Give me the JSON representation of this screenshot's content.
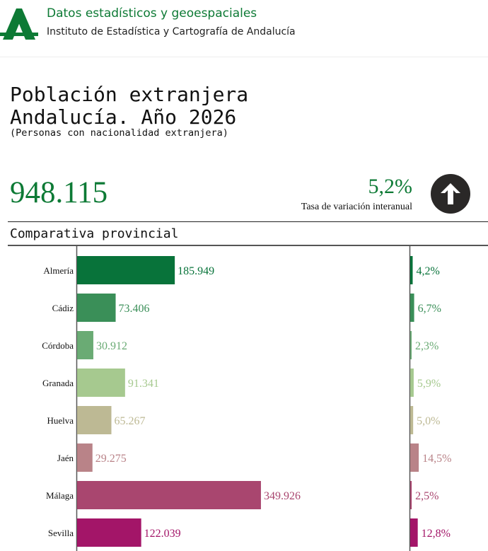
{
  "header": {
    "title": "Datos estadísticos y geoespaciales",
    "subtitle": "Instituto de Estadística y Cartografía de Andalucía"
  },
  "page": {
    "title_line1": "Población extranjera",
    "title_line2": "Andalucía. Año 2026",
    "subtitle": "(Personas con nacionalidad extranjera)"
  },
  "summary": {
    "total": "948.115",
    "rate": "5,2%",
    "rate_label": "Tasa de variación interanual",
    "trend_icon": "arrow-up-icon"
  },
  "section": {
    "title": "Comparativa provincial"
  },
  "colors": {
    "brand": "#0d7a35",
    "rule": "#222222"
  },
  "chart_data": {
    "type": "bar",
    "title": "Comparativa provincial",
    "categories": [
      "Almería",
      "Cádiz",
      "Córdoba",
      "Granada",
      "Huelva",
      "Jaén",
      "Málaga",
      "Sevilla"
    ],
    "series": [
      {
        "name": "Población extranjera",
        "values": [
          185949,
          73406,
          30912,
          91341,
          65267,
          29275,
          349926,
          122039
        ],
        "labels": [
          "185.949",
          "73.406",
          "30.912",
          "91.341",
          "65.267",
          "29.275",
          "349.926",
          "122.039"
        ]
      },
      {
        "name": "Tasa de variación interanual",
        "values": [
          4.2,
          6.7,
          2.3,
          5.9,
          5.0,
          14.5,
          2.5,
          12.8
        ],
        "labels": [
          "4,2%",
          "6,7%",
          "2,3%",
          "5,9%",
          "5,0%",
          "14,5%",
          "2,5%",
          "12,8%"
        ]
      }
    ],
    "colors": [
      "#08733a",
      "#3a8f58",
      "#6aab74",
      "#a6c98f",
      "#bdb994",
      "#b98388",
      "#a9466f",
      "#a31568"
    ],
    "xlim_population": [
      0,
      350000
    ],
    "xlim_rate": [
      0,
      15
    ],
    "legend": "none",
    "grid": false
  }
}
